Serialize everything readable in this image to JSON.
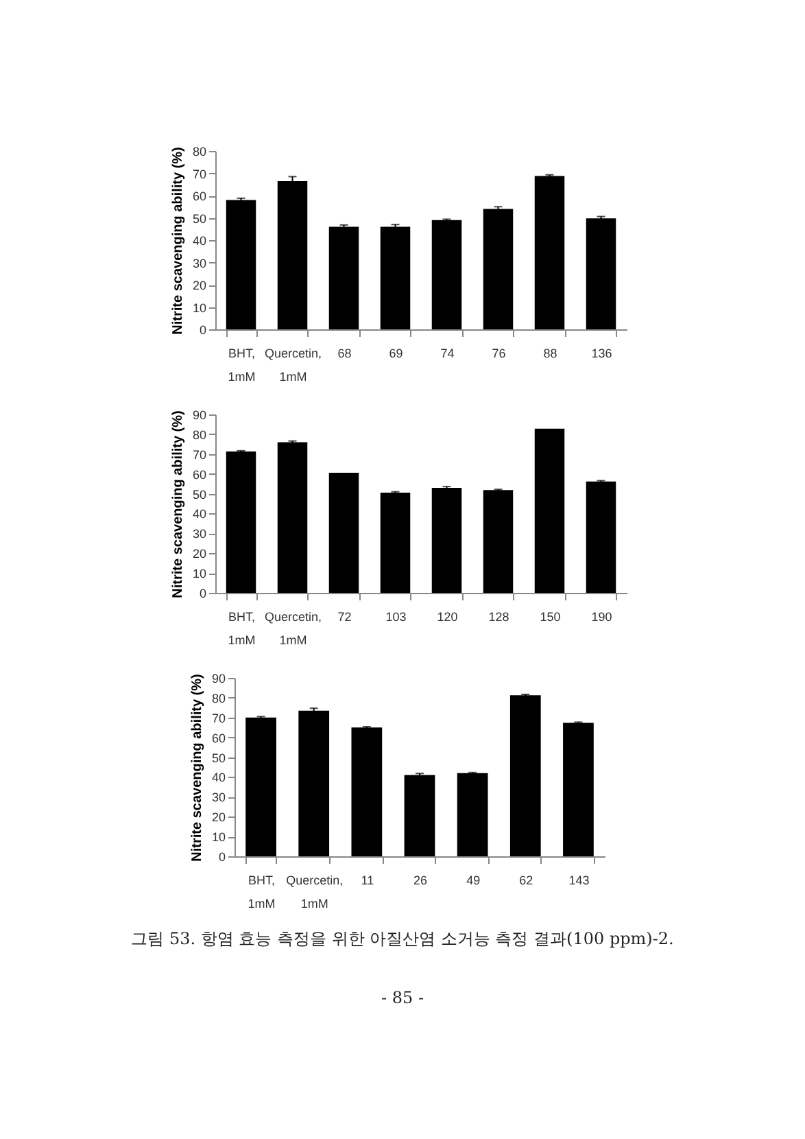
{
  "chart_data": [
    {
      "type": "bar",
      "ylabel": "Nitrite scavenging  ability (%)",
      "categories": [
        "BHT, 1mM",
        "Quercetin, 1mM",
        "68",
        "69",
        "74",
        "76",
        "88",
        "136"
      ],
      "series": [
        {
          "color": "#000000",
          "values": [
            58,
            66.5,
            46,
            46,
            49,
            54,
            68.8,
            49.8
          ],
          "errors": [
            0.8,
            2,
            0.8,
            1,
            0.4,
            1,
            0.5,
            0.8
          ]
        }
      ],
      "ylim": [
        0,
        80
      ],
      "yticks": [
        0,
        10,
        20,
        30,
        40,
        50,
        60,
        70,
        80
      ],
      "grid": false,
      "legend": false
    },
    {
      "type": "bar",
      "ylabel": "Nitrite scavenging  ability (%)",
      "categories": [
        "BHT, 1mM",
        "Quercetin, 1mM",
        "72",
        "103",
        "120",
        "128",
        "150",
        "190"
      ],
      "series": [
        {
          "color": "#000000",
          "values": [
            71.3,
            76,
            60.6,
            50.5,
            53,
            51.8,
            82.8,
            56.2
          ],
          "errors": [
            0.4,
            0.6,
            null,
            0.5,
            0.6,
            0.4,
            null,
            0.4
          ]
        }
      ],
      "ylim": [
        0,
        90
      ],
      "yticks": [
        0,
        10,
        20,
        30,
        40,
        50,
        60,
        70,
        80,
        90
      ],
      "grid": false,
      "legend": false
    },
    {
      "type": "bar",
      "ylabel": "Nitrite scavenging ability (%)",
      "categories": [
        "BHT, 1mM",
        "Quercetin, 1mM",
        "11",
        "26",
        "49",
        "62",
        "143"
      ],
      "series": [
        {
          "color": "#000000",
          "values": [
            70,
            73.5,
            65,
            41,
            42,
            81.3,
            67.3
          ],
          "errors": [
            0.5,
            1.2,
            0.4,
            0.8,
            0.3,
            0.4,
            0.4
          ]
        }
      ],
      "ylim": [
        0,
        90
      ],
      "yticks": [
        0,
        10,
        20,
        30,
        40,
        50,
        60,
        70,
        80,
        90
      ],
      "grid": false,
      "legend": false,
      "annotations": [
        "그림 53. 항염 효능 측정을 위한 아질산염 소거능 측정 결과(100 ppm)-2.",
        "- 85 -"
      ]
    }
  ]
}
